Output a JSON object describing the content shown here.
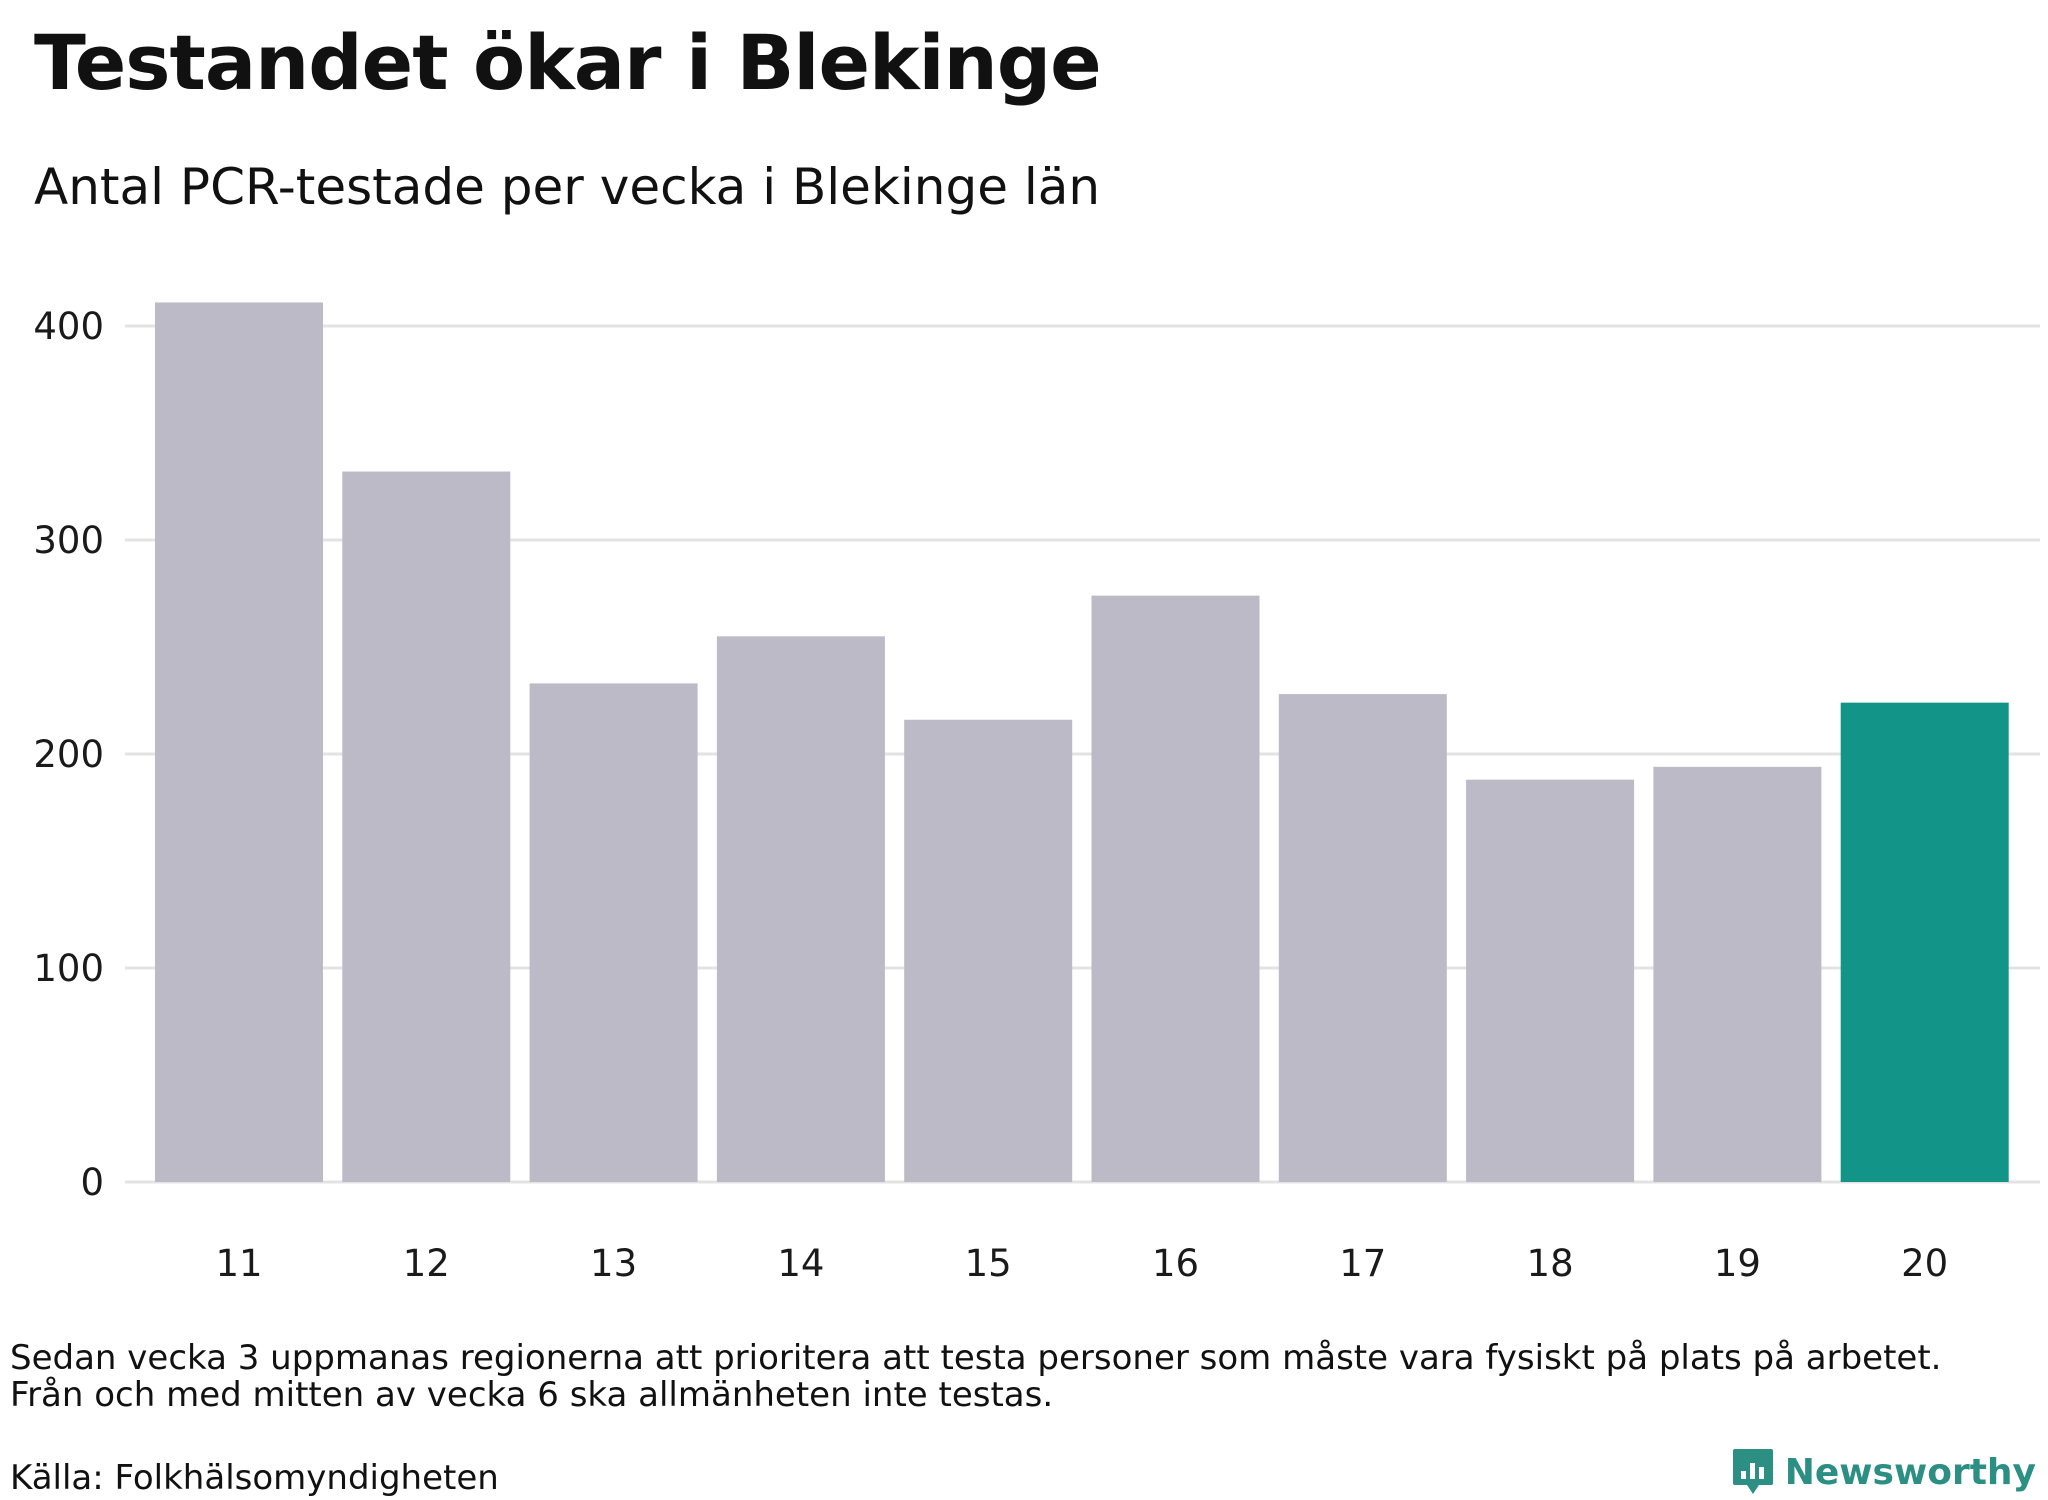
{
  "title": "Testandet ökar i Blekinge",
  "subtitle": "Antal PCR-testade per vecka i Blekinge län",
  "note_lines": [
    "Sedan vecka 3 uppmanas regionerna att prioritera att testa personer som måste vara fysiskt på plats på arbetet.",
    "Från och med mitten av vecka 6 ska allmänheten inte testas."
  ],
  "source": "Källa: Folkhälsomyndigheten",
  "brand": {
    "name": "Newsworthy",
    "icon": "bar-chart-speech-bubble-icon",
    "color": "#2b8f84"
  },
  "chart_data": {
    "type": "bar",
    "categories": [
      "11",
      "12",
      "13",
      "14",
      "15",
      "16",
      "17",
      "18",
      "19",
      "20"
    ],
    "values": [
      411,
      332,
      233,
      255,
      216,
      274,
      228,
      188,
      194,
      224
    ],
    "highlight_index": 9,
    "ylim": [
      0,
      400
    ],
    "yticks": [
      0,
      100,
      200,
      300,
      400
    ],
    "grid": true,
    "colors": {
      "bar": "#bcbac7",
      "highlight": "#139488",
      "grid": "#e3e3e3"
    }
  }
}
